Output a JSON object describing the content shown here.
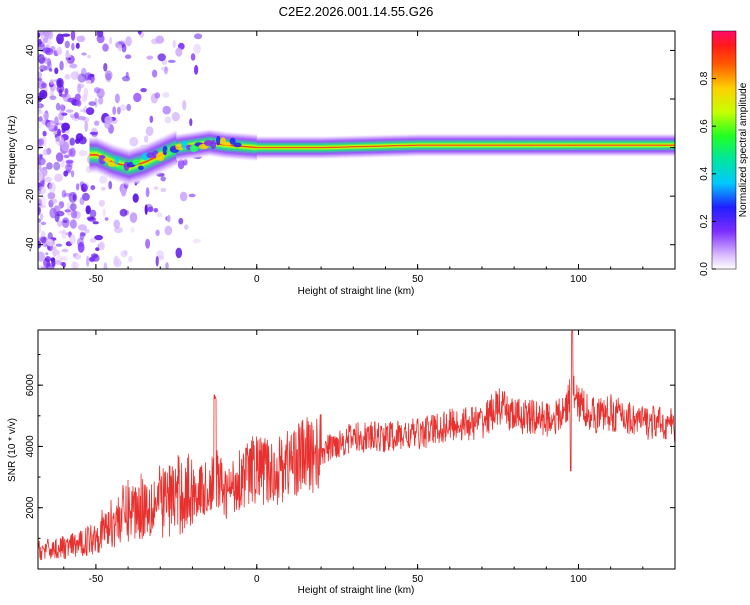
{
  "title": "C2E2.2026.001.14.55.G26",
  "colors": {
    "snr_line": "#e8312e",
    "band_core": "#ff1a1a",
    "noise_dot": "#7b2cff"
  },
  "chart_data": [
    {
      "type": "heatmap",
      "xlabel": "Height of straight line (km)",
      "ylabel": "Frequency (Hz)",
      "xlim": [
        -68,
        130
      ],
      "ylim": [
        -50,
        48
      ],
      "xticks": [
        -50,
        0,
        50,
        100
      ],
      "yticks": [
        -40,
        -20,
        0,
        20,
        40
      ],
      "band_center_hz": [
        {
          "x": -50,
          "y": -3
        },
        {
          "x": -45,
          "y": -6
        },
        {
          "x": -40,
          "y": -8
        },
        {
          "x": -35,
          "y": -6
        },
        {
          "x": -30,
          "y": -3
        },
        {
          "x": -25,
          "y": 0
        },
        {
          "x": -20,
          "y": 1
        },
        {
          "x": -15,
          "y": 2
        },
        {
          "x": -10,
          "y": 1
        },
        {
          "x": 0,
          "y": 0
        },
        {
          "x": 20,
          "y": 0
        },
        {
          "x": 50,
          "y": 1
        },
        {
          "x": 80,
          "y": 1
        },
        {
          "x": 100,
          "y": 1
        },
        {
          "x": 130,
          "y": 1
        }
      ],
      "colorbar": {
        "label": "Normalized spectral amplitude",
        "range": [
          0,
          1
        ],
        "ticks": [
          "0.0",
          "0.2",
          "0.4",
          "0.6",
          "0.8"
        ]
      }
    },
    {
      "type": "line",
      "xlabel": "Height of straight line (km)",
      "ylabel": "SNR (10 * v/v)",
      "xlim": [
        -68,
        130
      ],
      "ylim": [
        0,
        7800
      ],
      "xticks": [
        -50,
        0,
        50,
        100
      ],
      "yticks": [
        2000,
        4000,
        6000
      ],
      "series": [
        {
          "name": "SNR",
          "x": [
            -68,
            -60,
            -55,
            -50,
            -45,
            -40,
            -35,
            -30,
            -25,
            -20,
            -15,
            -12,
            -10,
            -5,
            0,
            5,
            10,
            15,
            20,
            25,
            30,
            40,
            50,
            60,
            70,
            75,
            80,
            90,
            95,
            98,
            100,
            105,
            110,
            120,
            130
          ],
          "values": [
            600,
            700,
            800,
            1100,
            1500,
            1900,
            2100,
            2200,
            2400,
            2500,
            2600,
            3000,
            2400,
            3000,
            3300,
            3100,
            3500,
            3700,
            3800,
            4100,
            4300,
            4300,
            4400,
            4700,
            4800,
            5300,
            5000,
            4900,
            5000,
            5800,
            5400,
            5000,
            5100,
            4800,
            4700
          ]
        }
      ]
    }
  ]
}
